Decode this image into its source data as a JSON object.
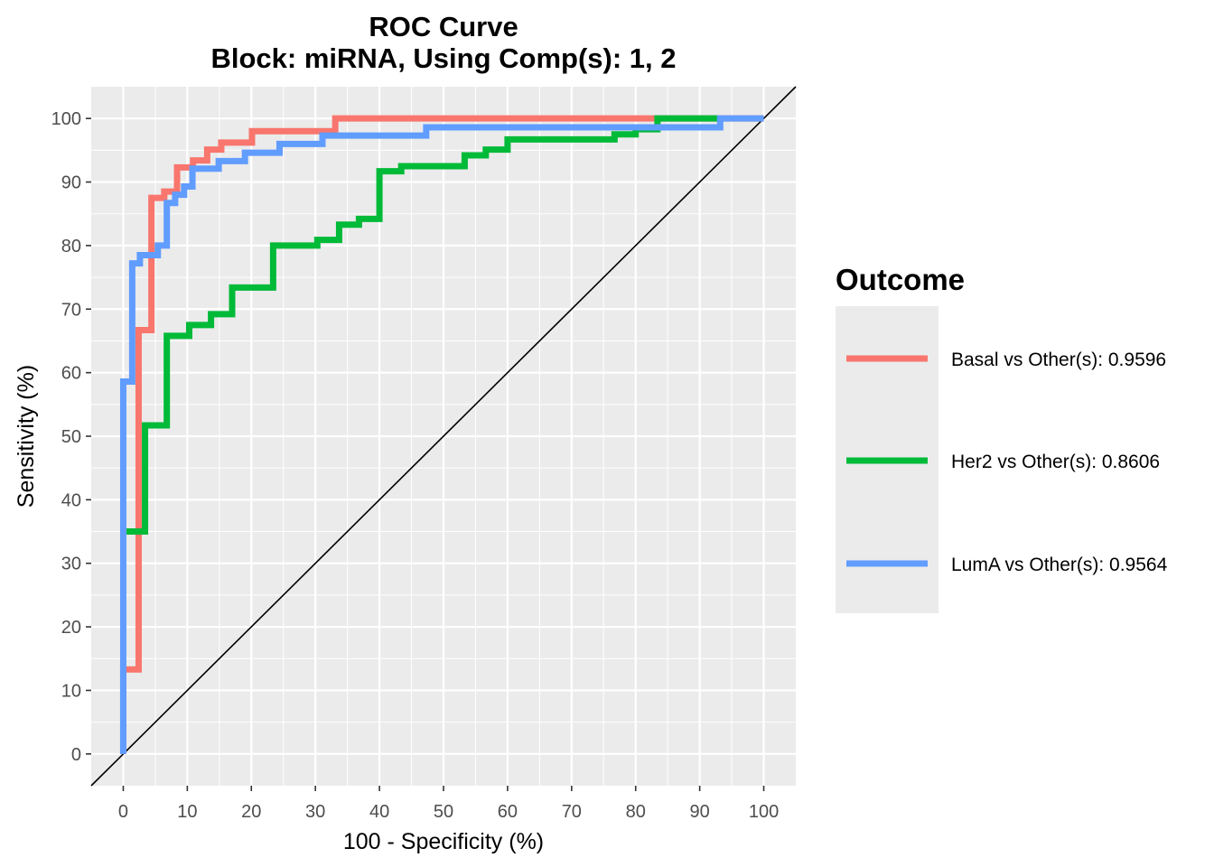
{
  "chart_data": {
    "type": "line",
    "title": "ROC Curve",
    "subtitle": "Block: miRNA, Using Comp(s): 1, 2",
    "xlabel": "100 - Specificity (%)",
    "ylabel": "Sensitivity (%)",
    "xlim": [
      -5,
      105
    ],
    "ylim": [
      -5,
      105
    ],
    "xticks": [
      0,
      10,
      20,
      30,
      40,
      50,
      60,
      70,
      80,
      90,
      100
    ],
    "yticks": [
      0,
      10,
      20,
      30,
      40,
      50,
      60,
      70,
      80,
      90,
      100
    ],
    "grid": true,
    "legend": {
      "title": "Outcome",
      "position": "right"
    },
    "reference_line": {
      "x": [
        -5,
        105
      ],
      "y": [
        -5,
        105
      ],
      "color": "#000000"
    },
    "series": [
      {
        "name": "Basal vs Other(s): 0.9596",
        "color": "#F8766D",
        "x": [
          0,
          0,
          2.4,
          2.4,
          4.4,
          4.4,
          6.4,
          6.4,
          8.4,
          8.4,
          10.9,
          10.9,
          13.1,
          13.1,
          15.3,
          15.3,
          20.1,
          20.1,
          33.1,
          33.1,
          100
        ],
        "y": [
          0,
          13.3,
          13.3,
          66.7,
          66.7,
          87.5,
          87.5,
          88.5,
          88.5,
          92.3,
          92.3,
          93.4,
          93.4,
          95.1,
          95.1,
          96.2,
          96.2,
          98.0,
          98.0,
          100,
          100
        ]
      },
      {
        "name": "Her2 vs Other(s): 0.8606",
        "color": "#00BA38",
        "x": [
          0.5,
          0.5,
          3.4,
          3.4,
          6.8,
          6.8,
          10.3,
          10.3,
          13.7,
          13.7,
          17.0,
          17.0,
          23.4,
          23.4,
          30.3,
          30.3,
          33.7,
          33.7,
          36.8,
          36.8,
          40.0,
          40.0,
          43.4,
          43.4,
          53.3,
          53.3,
          56.6,
          56.6,
          60.0,
          60.0,
          76.7,
          76.7,
          80.0,
          80.0,
          83.4,
          83.4,
          93.0
        ],
        "y": [
          35.0,
          35.0,
          35.0,
          51.7,
          51.7,
          65.8,
          65.8,
          67.5,
          67.5,
          69.2,
          69.2,
          73.4,
          73.4,
          80.0,
          80.0,
          80.9,
          80.9,
          83.3,
          83.3,
          84.2,
          84.2,
          91.7,
          91.7,
          92.5,
          92.5,
          94.2,
          94.2,
          95.1,
          95.1,
          96.7,
          96.7,
          97.5,
          97.5,
          98.3,
          98.3,
          100,
          100
        ]
      },
      {
        "name": "LumA vs Other(s): 0.9564",
        "color": "#619CFF",
        "x": [
          0,
          0,
          1.4,
          1.4,
          2.6,
          2.6,
          5.4,
          5.4,
          6.8,
          6.8,
          8.1,
          8.1,
          9.5,
          9.5,
          10.8,
          10.8,
          14.9,
          14.9,
          19.0,
          19.0,
          24.4,
          24.4,
          31.1,
          31.1,
          47.3,
          47.3,
          93.2,
          93.2,
          100
        ],
        "y": [
          0,
          58.6,
          58.6,
          77.2,
          77.2,
          78.5,
          78.5,
          80.0,
          80.0,
          86.7,
          86.7,
          88.0,
          88.0,
          89.3,
          89.3,
          92.1,
          92.1,
          93.3,
          93.3,
          94.6,
          94.6,
          96.0,
          96.0,
          97.3,
          97.3,
          98.6,
          98.6,
          100,
          100
        ]
      }
    ]
  }
}
